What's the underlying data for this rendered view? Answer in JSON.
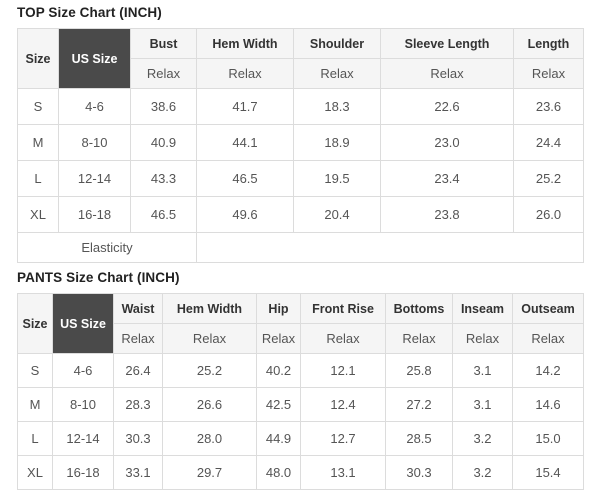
{
  "top_chart": {
    "title": "TOP Size Chart (INCH)",
    "size_header": "Size",
    "us_size_header": "US Size",
    "fit_label": "Relax",
    "columns": [
      "Bust",
      "Hem Width",
      "Shoulder",
      "Sleeve Length",
      "Length"
    ],
    "rows": [
      {
        "size": "S",
        "us_size": "4-6",
        "values": [
          "38.6",
          "41.7",
          "18.3",
          "22.6",
          "23.6"
        ]
      },
      {
        "size": "M",
        "us_size": "8-10",
        "values": [
          "40.9",
          "44.1",
          "18.9",
          "23.0",
          "24.4"
        ]
      },
      {
        "size": "L",
        "us_size": "12-14",
        "values": [
          "43.3",
          "46.5",
          "19.5",
          "23.4",
          "25.2"
        ]
      },
      {
        "size": "XL",
        "us_size": "16-18",
        "values": [
          "46.5",
          "49.6",
          "20.4",
          "23.8",
          "26.0"
        ]
      }
    ],
    "footer_label": "Elasticity"
  },
  "pants_chart": {
    "title": "PANTS Size Chart (INCH)",
    "size_header": "Size",
    "us_size_header": "US Size",
    "fit_label": "Relax",
    "columns": [
      "Waist",
      "Hem Width",
      "Hip",
      "Front Rise",
      "Bottoms",
      "Inseam",
      "Outseam"
    ],
    "rows": [
      {
        "size": "S",
        "us_size": "4-6",
        "values": [
          "26.4",
          "25.2",
          "40.2",
          "12.1",
          "25.8",
          "3.1",
          "14.2"
        ]
      },
      {
        "size": "M",
        "us_size": "8-10",
        "values": [
          "28.3",
          "26.6",
          "42.5",
          "12.4",
          "27.2",
          "3.1",
          "14.6"
        ]
      },
      {
        "size": "L",
        "us_size": "12-14",
        "values": [
          "30.3",
          "28.0",
          "44.9",
          "12.7",
          "28.5",
          "3.2",
          "15.0"
        ]
      },
      {
        "size": "XL",
        "us_size": "16-18",
        "values": [
          "33.1",
          "29.7",
          "48.0",
          "13.1",
          "30.3",
          "3.2",
          "15.4"
        ]
      }
    ]
  },
  "colors": {
    "us_size_cell_bg": "#4a4a4a",
    "us_size_cell_text": "#ffffff",
    "header_bg": "#f5f5f5",
    "border": "#dcdcdc",
    "body_text": "#555555",
    "header_text": "#333333",
    "title_text": "#222222"
  }
}
